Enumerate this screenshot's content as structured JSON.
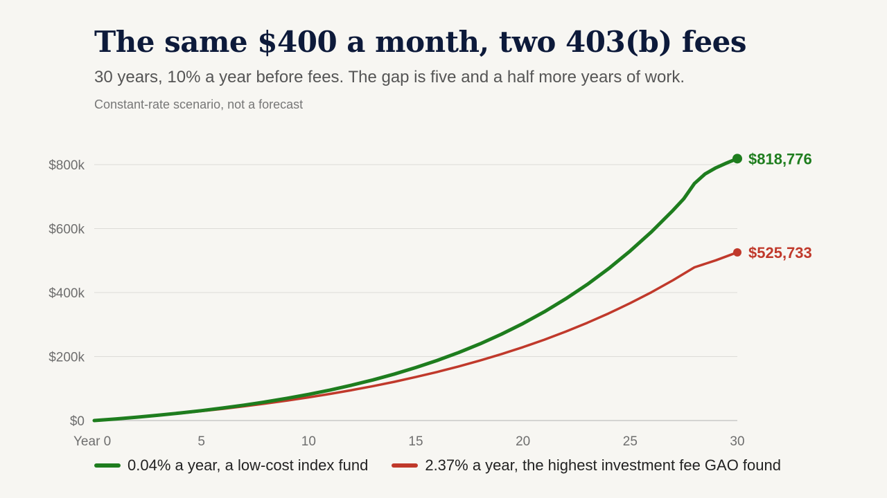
{
  "header": {
    "title": "The same $400 a month, two 403(b) fees",
    "subtitle": "30 years, 10% a year before fees. The gap is five and a half more years of work.",
    "note": "Constant-rate scenario, not a forecast"
  },
  "chart_data": {
    "type": "line",
    "x_ticks": [
      "Year 0",
      "5",
      "10",
      "15",
      "20",
      "25",
      "30"
    ],
    "y_ticks": [
      "$0",
      "$200k",
      "$400k",
      "$600k",
      "$800k"
    ],
    "xlim": [
      0,
      30
    ],
    "ylim": [
      0,
      800000
    ],
    "grid": true,
    "legend_position": "bottom",
    "colors": {
      "low": "#1e7d1e",
      "high": "#c0392b",
      "grid": "#dddcd8",
      "axis": "#c8c8c8"
    },
    "series": [
      {
        "name": "0.04% a year, a low-cost index fund",
        "color": "#1e7d1e",
        "end_label": "$818,776",
        "x": [
          0,
          1,
          2,
          3,
          4,
          5,
          6,
          7,
          8,
          9,
          10,
          11,
          12,
          13,
          14,
          15,
          16,
          17,
          18,
          19,
          20,
          21,
          22,
          23,
          24,
          25,
          26,
          27,
          27.5,
          28,
          28.5,
          29,
          29.5,
          30
        ],
        "y": [
          0,
          5021,
          10567,
          16693,
          23461,
          30936,
          39195,
          48317,
          58395,
          69527,
          81825,
          95410,
          110418,
          126997,
          145311,
          165543,
          187892,
          212581,
          239855,
          269984,
          303267,
          340035,
          380652,
          425520,
          475086,
          529840,
          590327,
          657145,
          693105,
          740962,
          771062,
          790000,
          805000,
          818776
        ]
      },
      {
        "name": "2.37% a year, the highest investment fee GAO found",
        "color": "#c0392b",
        "end_label": "$525,733",
        "x": [
          0,
          1,
          2,
          3,
          4,
          5,
          6,
          7,
          8,
          9,
          10,
          11,
          12,
          13,
          14,
          15,
          16,
          17,
          18,
          19,
          20,
          21,
          22,
          23,
          24,
          25,
          26,
          27,
          28,
          29,
          30
        ],
        "y": [
          0,
          4991,
          10383,
          16208,
          22502,
          29302,
          36648,
          44585,
          53160,
          62424,
          72433,
          83246,
          94928,
          107549,
          121185,
          135917,
          151834,
          169030,
          187608,
          207680,
          229365,
          252794,
          278105,
          305452,
          335000,
          366918,
          401403,
          438659,
          478912,
          500922,
          525733
        ]
      }
    ]
  }
}
